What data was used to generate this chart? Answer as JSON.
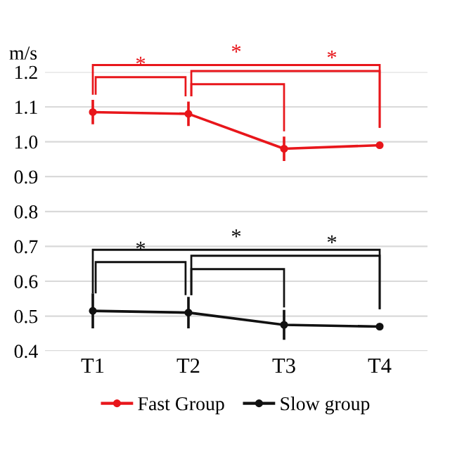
{
  "chart_data": {
    "type": "line",
    "ylabel": "m/s",
    "categories": [
      "T1",
      "T2",
      "T3",
      "T4"
    ],
    "series": [
      {
        "name": "Fast Group",
        "color": "#e8161b",
        "values": [
          1.085,
          1.08,
          0.98,
          0.99
        ],
        "errors": [
          0.035,
          0.035,
          0.035,
          null
        ]
      },
      {
        "name": "Slow group",
        "color": "#111111",
        "values": [
          0.515,
          0.51,
          0.475,
          0.47
        ],
        "errors": [
          0.05,
          0.045,
          0.043,
          null
        ]
      }
    ],
    "ylim": [
      0.4,
      1.2
    ],
    "yticks": [
      {
        "value": 0.4,
        "label": "0.4"
      },
      {
        "value": 0.5,
        "label": "0.5"
      },
      {
        "value": 0.6,
        "label": "0.6"
      },
      {
        "value": 0.7,
        "label": "0.7"
      },
      {
        "value": 0.8,
        "label": "0.8"
      },
      {
        "value": 0.9,
        "label": "0.9"
      },
      {
        "value": 1.0,
        "label": "1.0"
      },
      {
        "value": 1.1,
        "label": "1.1"
      },
      {
        "value": 1.2,
        "label": "1.2"
      }
    ],
    "grid": "y",
    "legend": "bottom",
    "marker": "circle",
    "line_style": "solid",
    "annotations": [
      "*",
      "*",
      "*",
      "*",
      "*",
      "*"
    ]
  }
}
